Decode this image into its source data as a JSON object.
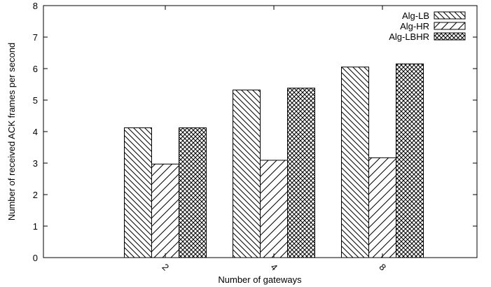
{
  "chart_data": {
    "type": "bar",
    "title": "",
    "xlabel": "Number of gateways",
    "ylabel": "Number of received ACK frames per second",
    "categories": [
      "2",
      "4",
      "8"
    ],
    "ylim": [
      0,
      8
    ],
    "yticks": [
      0,
      1,
      2,
      3,
      4,
      5,
      6,
      7,
      8
    ],
    "grid": false,
    "legend_position": "top-right",
    "series": [
      {
        "name": "Alg-LB",
        "pattern": "backslash-hatch",
        "values": [
          4.12,
          5.32,
          6.05
        ]
      },
      {
        "name": "Alg-HR",
        "pattern": "slash-hatch",
        "values": [
          2.97,
          3.09,
          3.17
        ]
      },
      {
        "name": "Alg-LBHR",
        "pattern": "cross-hatch",
        "values": [
          4.12,
          5.38,
          6.15
        ]
      }
    ]
  }
}
